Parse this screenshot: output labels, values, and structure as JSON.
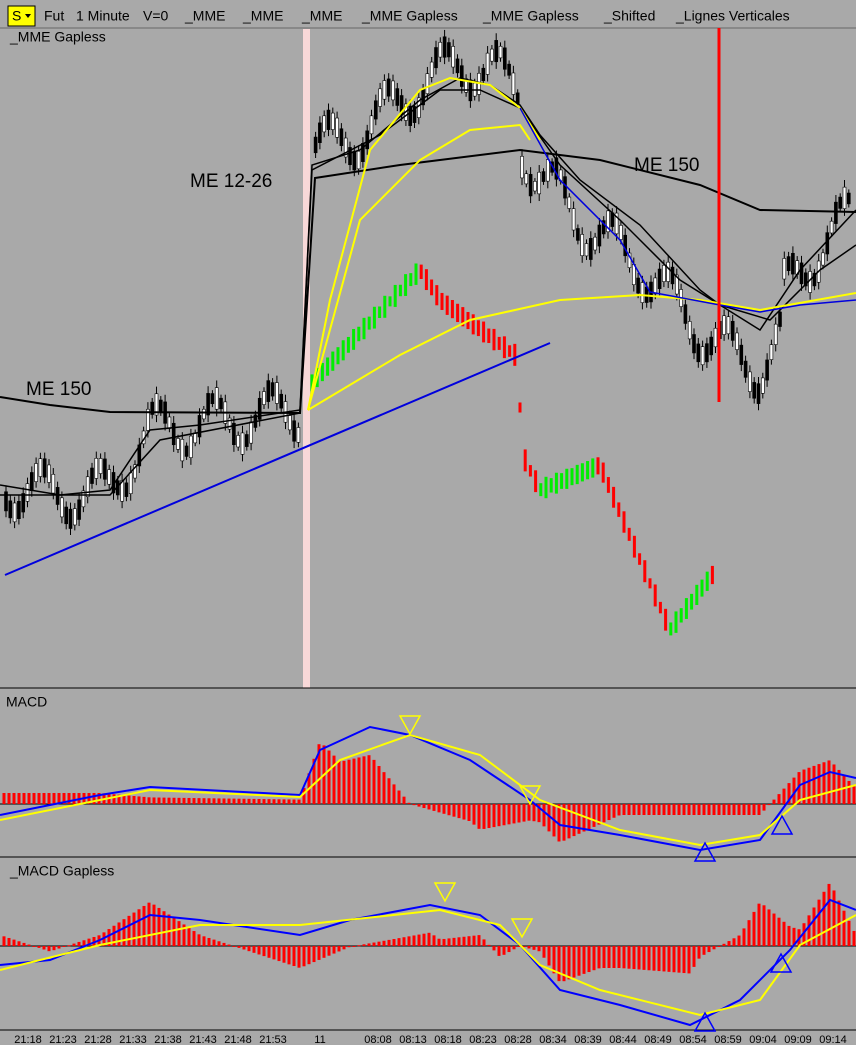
{
  "toolbar": {
    "button": "S",
    "items": [
      "Fut",
      "1 Minute",
      "V=0",
      "_MME",
      "_MME",
      "_MME",
      "_MME Gapless",
      "_MME Gapless",
      "_Shifted",
      "_Lignes Verticales"
    ]
  },
  "main_pane": {
    "label": "_MME Gapless",
    "annotations": [
      "ME 12-26",
      "ME 150",
      "ME 150"
    ]
  },
  "macd_pane": {
    "label": "MACD"
  },
  "macd_gapless_pane": {
    "label": "_MACD Gapless"
  },
  "time_axis": [
    "21:18",
    "21:23",
    "21:28",
    "21:33",
    "21:38",
    "21:43",
    "21:48",
    "21:53",
    "11",
    "08:08",
    "08:13",
    "08:18",
    "08:23",
    "08:28",
    "08:34",
    "08:39",
    "08:44",
    "08:49",
    "08:54",
    "08:59",
    "09:04",
    "09:09",
    "09:14"
  ]
}
